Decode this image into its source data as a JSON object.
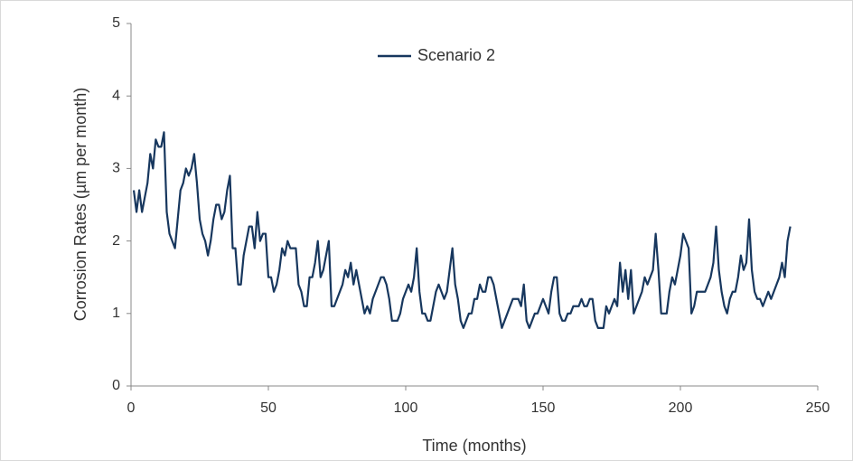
{
  "chart_data": {
    "type": "line",
    "xlabel": "Time (months)",
    "ylabel": "Corrosion Rates (µm per month)",
    "xlim": [
      0,
      250
    ],
    "xticks": [
      0,
      50,
      100,
      150,
      200,
      250
    ],
    "ylim": [
      0,
      5
    ],
    "yticks": [
      0,
      1,
      2,
      3,
      4,
      5
    ],
    "grid": false,
    "legend": "top",
    "x": [
      1,
      2,
      3,
      4,
      5,
      6,
      7,
      8,
      9,
      10,
      11,
      12,
      13,
      14,
      15,
      16,
      17,
      18,
      19,
      20,
      21,
      22,
      23,
      24,
      25,
      26,
      27,
      28,
      29,
      30,
      31,
      32,
      33,
      34,
      35,
      36,
      37,
      38,
      39,
      40,
      41,
      42,
      43,
      44,
      45,
      46,
      47,
      48,
      49,
      50,
      51,
      52,
      53,
      54,
      55,
      56,
      57,
      58,
      59,
      60,
      61,
      62,
      63,
      64,
      65,
      66,
      67,
      68,
      69,
      70,
      71,
      72,
      73,
      74,
      75,
      76,
      77,
      78,
      79,
      80,
      81,
      82,
      83,
      84,
      85,
      86,
      87,
      88,
      89,
      90,
      91,
      92,
      93,
      94,
      95,
      96,
      97,
      98,
      99,
      100,
      101,
      102,
      103,
      104,
      105,
      106,
      107,
      108,
      109,
      110,
      111,
      112,
      113,
      114,
      115,
      116,
      117,
      118,
      119,
      120,
      121,
      122,
      123,
      124,
      125,
      126,
      127,
      128,
      129,
      130,
      131,
      132,
      133,
      134,
      135,
      136,
      137,
      138,
      139,
      140,
      141,
      142,
      143,
      144,
      145,
      146,
      147,
      148,
      149,
      150,
      151,
      152,
      153,
      154,
      155,
      156,
      157,
      158,
      159,
      160,
      161,
      162,
      163,
      164,
      165,
      166,
      167,
      168,
      169,
      170,
      171,
      172,
      173,
      174,
      175,
      176,
      177,
      178,
      179,
      180,
      181,
      182,
      183,
      184,
      185,
      186,
      187,
      188,
      189,
      190,
      191,
      192,
      193,
      194,
      195,
      196,
      197,
      198,
      199,
      200,
      201,
      202,
      203,
      204,
      205,
      206,
      207,
      208,
      209,
      210,
      211,
      212,
      213,
      214,
      215,
      216,
      217,
      218,
      219,
      220,
      221,
      222,
      223,
      224,
      225,
      226,
      227,
      228,
      229,
      230,
      231,
      232,
      233,
      234,
      235,
      236,
      237,
      238,
      239,
      240
    ],
    "series": [
      {
        "name": "Scenario 2",
        "color": "#17375e",
        "values": [
          2.7,
          2.4,
          2.7,
          2.4,
          2.6,
          2.8,
          3.2,
          3.0,
          3.4,
          3.3,
          3.3,
          3.5,
          2.4,
          2.1,
          2.0,
          1.9,
          2.3,
          2.7,
          2.8,
          3.0,
          2.9,
          3.0,
          3.2,
          2.8,
          2.3,
          2.1,
          2.0,
          1.8,
          2.0,
          2.3,
          2.5,
          2.5,
          2.3,
          2.4,
          2.7,
          2.9,
          1.9,
          1.9,
          1.4,
          1.4,
          1.8,
          2.0,
          2.2,
          2.2,
          1.9,
          2.4,
          2.0,
          2.1,
          2.1,
          1.5,
          1.5,
          1.3,
          1.4,
          1.6,
          1.9,
          1.8,
          2.0,
          1.9,
          1.9,
          1.9,
          1.4,
          1.3,
          1.1,
          1.1,
          1.5,
          1.5,
          1.7,
          2.0,
          1.5,
          1.6,
          1.8,
          2.0,
          1.1,
          1.1,
          1.2,
          1.3,
          1.4,
          1.6,
          1.5,
          1.7,
          1.4,
          1.6,
          1.4,
          1.2,
          1.0,
          1.1,
          1.0,
          1.2,
          1.3,
          1.4,
          1.5,
          1.5,
          1.4,
          1.2,
          0.9,
          0.9,
          0.9,
          1.0,
          1.2,
          1.3,
          1.4,
          1.3,
          1.5,
          1.9,
          1.3,
          1.0,
          1.0,
          0.9,
          0.9,
          1.1,
          1.3,
          1.4,
          1.3,
          1.2,
          1.3,
          1.6,
          1.9,
          1.4,
          1.2,
          0.9,
          0.8,
          0.9,
          1.0,
          1.0,
          1.2,
          1.2,
          1.4,
          1.3,
          1.3,
          1.5,
          1.5,
          1.4,
          1.2,
          1.0,
          0.8,
          0.9,
          1.0,
          1.1,
          1.2,
          1.2,
          1.2,
          1.1,
          1.4,
          0.9,
          0.8,
          0.9,
          1.0,
          1.0,
          1.1,
          1.2,
          1.1,
          1.0,
          1.3,
          1.5,
          1.5,
          1.0,
          0.9,
          0.9,
          1.0,
          1.0,
          1.1,
          1.1,
          1.1,
          1.2,
          1.1,
          1.1,
          1.2,
          1.2,
          0.9,
          0.8,
          0.8,
          0.8,
          1.1,
          1.0,
          1.1,
          1.2,
          1.1,
          1.7,
          1.3,
          1.6,
          1.2,
          1.6,
          1.0,
          1.1,
          1.2,
          1.3,
          1.5,
          1.4,
          1.5,
          1.6,
          2.1,
          1.6,
          1.0,
          1.0,
          1.0,
          1.3,
          1.5,
          1.4,
          1.6,
          1.8,
          2.1,
          2.0,
          1.9,
          1.0,
          1.1,
          1.3,
          1.3,
          1.3,
          1.3,
          1.4,
          1.5,
          1.7,
          2.2,
          1.6,
          1.3,
          1.1,
          1.0,
          1.2,
          1.3,
          1.3,
          1.5,
          1.8,
          1.6,
          1.7,
          2.3,
          1.6,
          1.3,
          1.2,
          1.2,
          1.1,
          1.2,
          1.3,
          1.2,
          1.3,
          1.4,
          1.5,
          1.7,
          1.5,
          2.0,
          2.2
        ]
      }
    ]
  }
}
